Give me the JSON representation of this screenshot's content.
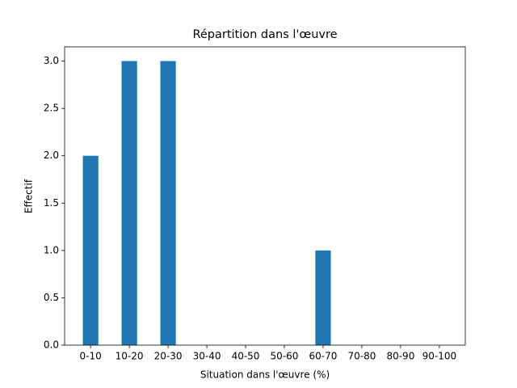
{
  "chart_data": {
    "type": "bar",
    "title": "Répartition dans l'œuvre",
    "x_label": "Situation dans l'œuvre (%)",
    "y_label": "Effectif",
    "categories": [
      "0-10",
      "10-20",
      "20-30",
      "30-40",
      "40-50",
      "50-60",
      "60-70",
      "70-80",
      "80-90",
      "90-100"
    ],
    "values": [
      2,
      3,
      3,
      0,
      0,
      0,
      1,
      0,
      0,
      0
    ],
    "color": "#1f77b4",
    "ylim": [
      0,
      3.15
    ],
    "yticks": [
      {
        "value": 0,
        "label": "0.0"
      },
      {
        "value": 0.5,
        "label": "0.5"
      },
      {
        "value": 1,
        "label": "1.0"
      },
      {
        "value": 1.5,
        "label": "1.5"
      },
      {
        "value": 2,
        "label": "2.0"
      },
      {
        "value": 2.5,
        "label": "2.5"
      },
      {
        "value": 3,
        "label": "3.0"
      }
    ],
    "grid": false
  }
}
